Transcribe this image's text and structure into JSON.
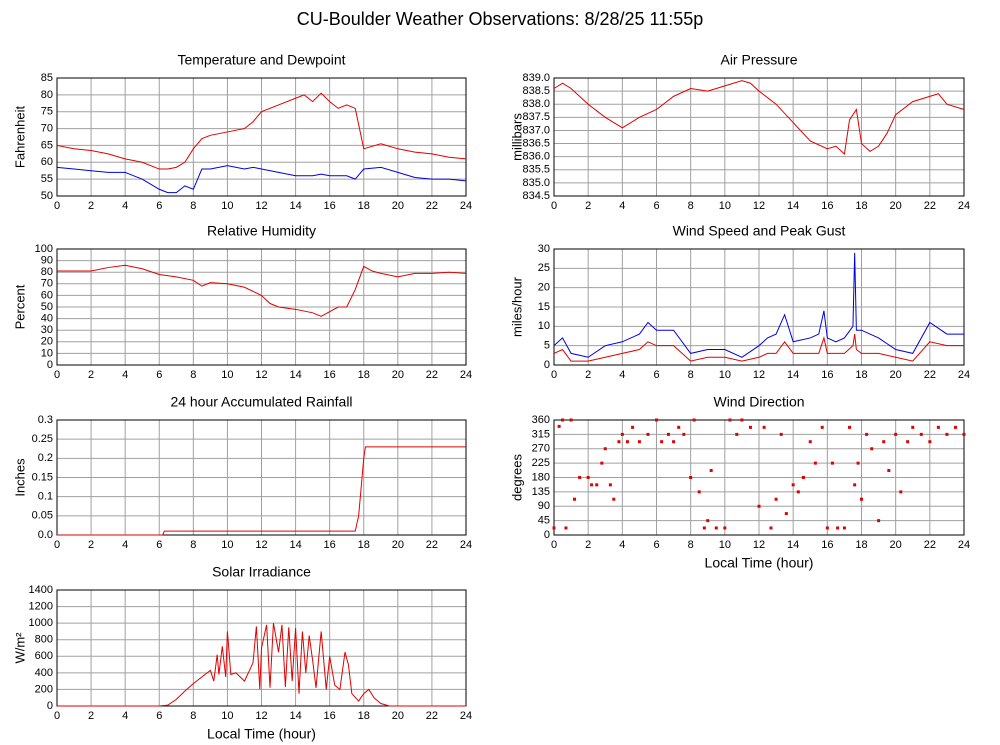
{
  "title": "CU-Boulder Weather Observations: 8/28/25 11:55p",
  "chart_data": [
    {
      "type": "line",
      "title": "Temperature and Dewpoint",
      "ylabel": "Fahrenheit",
      "grid": true,
      "x": [
        0,
        1,
        2,
        3,
        4,
        5,
        6,
        6.5,
        7,
        7.5,
        8,
        8.5,
        9,
        10,
        11,
        11.5,
        12,
        13,
        14,
        14.5,
        15,
        15.5,
        16,
        16.5,
        17,
        17.5,
        18,
        19,
        20,
        21,
        22,
        23,
        24
      ],
      "series": [
        {
          "color": "#e00000",
          "values": [
            65,
            64,
            63.5,
            62.5,
            61,
            60,
            58,
            58,
            58.5,
            60,
            64,
            67,
            68,
            69,
            70,
            72,
            75,
            77,
            79,
            80,
            78,
            80.5,
            78,
            76,
            77,
            76,
            64,
            65.5,
            64,
            63,
            62.5,
            61.5,
            61
          ]
        },
        {
          "color": "#0000e0",
          "values": [
            58.5,
            58,
            57.5,
            57,
            57,
            55,
            52,
            51,
            51,
            53,
            52,
            58,
            58,
            59,
            58,
            58.5,
            58,
            57,
            56,
            56,
            56,
            56.5,
            56,
            56,
            56,
            55,
            58,
            58.5,
            57,
            55.5,
            55,
            55,
            54.5
          ]
        }
      ],
      "xlim": [
        0,
        24
      ],
      "xticks": [
        0,
        2,
        4,
        6,
        8,
        10,
        12,
        14,
        16,
        18,
        20,
        22,
        24
      ],
      "ylim": [
        50,
        85
      ],
      "yticks": [
        50,
        55,
        60,
        65,
        70,
        75,
        80,
        85
      ]
    },
    {
      "type": "line",
      "title": "Air Pressure",
      "ylabel": "millibars",
      "grid": true,
      "x": [
        0,
        0.5,
        1,
        2,
        3,
        4,
        5,
        6,
        7,
        8,
        9,
        10,
        11,
        11.5,
        12,
        13,
        14,
        15,
        16,
        16.5,
        17,
        17.3,
        17.7,
        18,
        18.5,
        19,
        19.5,
        20,
        21,
        22,
        22.5,
        23,
        24
      ],
      "series": [
        {
          "color": "#e00000",
          "values": [
            838.6,
            838.8,
            838.6,
            838.0,
            837.5,
            837.1,
            837.5,
            837.8,
            838.3,
            838.6,
            838.5,
            838.7,
            838.9,
            838.8,
            838.5,
            838.0,
            837.3,
            836.6,
            836.3,
            836.4,
            836.1,
            837.4,
            837.8,
            836.5,
            836.2,
            836.4,
            836.9,
            837.6,
            838.1,
            838.3,
            838.4,
            838.0,
            837.8
          ]
        }
      ],
      "xlim": [
        0,
        24
      ],
      "xticks": [
        0,
        2,
        4,
        6,
        8,
        10,
        12,
        14,
        16,
        18,
        20,
        22,
        24
      ],
      "ylim": [
        834.5,
        839
      ],
      "yticks": [
        834.5,
        {
          "value": 835,
          "label": "835.0"
        },
        835.5,
        {
          "value": 836,
          "label": "836.0"
        },
        836.5,
        {
          "value": 837,
          "label": "837.0"
        },
        837.5,
        {
          "value": 838,
          "label": "838.0"
        },
        838.5,
        {
          "value": 839,
          "label": "839.0"
        }
      ]
    },
    {
      "type": "line",
      "title": "Relative Humidity",
      "ylabel": "Percent",
      "grid": true,
      "x": [
        0,
        1,
        2,
        3,
        4,
        5,
        6,
        7,
        8,
        8.5,
        9,
        10,
        11,
        12,
        12.5,
        13,
        14,
        15,
        15.5,
        16,
        16.5,
        17,
        17.5,
        18,
        18.5,
        19,
        20,
        21,
        22,
        23,
        24
      ],
      "series": [
        {
          "color": "#e00000",
          "values": [
            81,
            81,
            81,
            84,
            86,
            83,
            78,
            76,
            73,
            68,
            71,
            70,
            67,
            60,
            53,
            50,
            48,
            45,
            42,
            46,
            50,
            50,
            65,
            85,
            81,
            79,
            76,
            79,
            79,
            80,
            79
          ]
        }
      ],
      "xlim": [
        0,
        24
      ],
      "xticks": [
        0,
        2,
        4,
        6,
        8,
        10,
        12,
        14,
        16,
        18,
        20,
        22,
        24
      ],
      "ylim": [
        0,
        100
      ],
      "yticks": [
        0,
        10,
        20,
        30,
        40,
        50,
        60,
        70,
        80,
        90,
        100
      ]
    },
    {
      "type": "line",
      "title": "Wind Speed and Peak Gust",
      "ylabel": "miles/hour",
      "grid": true,
      "x": [
        0,
        0.5,
        1,
        2,
        3,
        4,
        5,
        5.5,
        6,
        7,
        8,
        9,
        10,
        11,
        12,
        12.5,
        13,
        13.5,
        14,
        15,
        15.5,
        15.8,
        16,
        16.5,
        17,
        17.5,
        17.6,
        17.7,
        18,
        19,
        20,
        21,
        22,
        23,
        24
      ],
      "series": [
        {
          "color": "#0000e0",
          "values": [
            5,
            7,
            3,
            2,
            5,
            6,
            8,
            11,
            9,
            9,
            3,
            4,
            4,
            2,
            5,
            7,
            8,
            13,
            6,
            7,
            8,
            14,
            7,
            6,
            7,
            10,
            29,
            9,
            9,
            7,
            4,
            3,
            11,
            8,
            8
          ]
        },
        {
          "color": "#e00000",
          "values": [
            3,
            4,
            1,
            1,
            2,
            3,
            4,
            6,
            5,
            5,
            1,
            2,
            2,
            1,
            2,
            3,
            3,
            6,
            3,
            3,
            3,
            7,
            3,
            3,
            3,
            5,
            8,
            4,
            3,
            3,
            2,
            1,
            6,
            5,
            5
          ]
        }
      ],
      "xlim": [
        0,
        24
      ],
      "xticks": [
        0,
        2,
        4,
        6,
        8,
        10,
        12,
        14,
        16,
        18,
        20,
        22,
        24
      ],
      "ylim": [
        0,
        30
      ],
      "yticks": [
        0,
        5,
        10,
        15,
        20,
        25,
        30
      ]
    },
    {
      "type": "line",
      "title": "24 hour Accumulated Rainfall",
      "ylabel": "Inches",
      "grid": true,
      "x": [
        0,
        6.2,
        6.3,
        17.5,
        17.7,
        17.9,
        18.0,
        18.1,
        24
      ],
      "series": [
        {
          "color": "#e00000",
          "values": [
            0,
            0,
            0.01,
            0.01,
            0.05,
            0.15,
            0.2,
            0.23,
            0.23
          ]
        }
      ],
      "xlim": [
        0,
        24
      ],
      "xticks": [
        0,
        2,
        4,
        6,
        8,
        10,
        12,
        14,
        16,
        18,
        20,
        22,
        24
      ],
      "ylim": [
        0,
        0.3
      ],
      "yticks": [
        {
          "value": 0,
          "label": "0.0"
        },
        0.05,
        0.1,
        0.15,
        0.2,
        0.25,
        0.3
      ]
    },
    {
      "type": "scatter",
      "title": "Wind Direction",
      "ylabel": "degrees",
      "xlabel": "Local Time (hour)",
      "grid": true,
      "x": [
        0,
        0.3,
        0.5,
        0.7,
        1,
        1.2,
        1.5,
        2,
        2.2,
        2.5,
        2.8,
        3,
        3.3,
        3.5,
        3.8,
        4,
        4.3,
        4.6,
        5,
        5.5,
        6,
        6.3,
        6.7,
        7,
        7.3,
        7.6,
        8,
        8.2,
        8.5,
        8.8,
        9,
        9.2,
        9.5,
        10,
        10.3,
        10.7,
        11,
        11.5,
        12,
        12.3,
        12.7,
        13,
        13.3,
        13.6,
        14,
        14.3,
        14.6,
        15,
        15.3,
        15.7,
        16,
        16.3,
        16.6,
        17,
        17.3,
        17.6,
        17.8,
        18,
        18.3,
        18.6,
        19,
        19.3,
        19.6,
        20,
        20.3,
        20.7,
        21,
        21.5,
        22,
        22.5,
        23,
        23.5,
        24
      ],
      "series": [
        {
          "color": "#e00000",
          "values": [
            22,
            340,
            360,
            22,
            360,
            112,
            180,
            180,
            157,
            157,
            225,
            270,
            157,
            112,
            292,
            315,
            292,
            337,
            292,
            315,
            360,
            292,
            315,
            292,
            337,
            315,
            180,
            360,
            135,
            22,
            45,
            202,
            22,
            22,
            360,
            315,
            360,
            337,
            90,
            337,
            22,
            112,
            315,
            67,
            157,
            135,
            180,
            292,
            225,
            337,
            22,
            225,
            22,
            22,
            337,
            157,
            225,
            112,
            315,
            270,
            45,
            292,
            202,
            315,
            135,
            292,
            337,
            315,
            292,
            337,
            315,
            337,
            315
          ]
        }
      ],
      "xlim": [
        0,
        24
      ],
      "xticks": [
        0,
        2,
        4,
        6,
        8,
        10,
        12,
        14,
        16,
        18,
        20,
        22,
        24
      ],
      "ylim": [
        0,
        360
      ],
      "yticks": [
        0,
        45,
        90,
        135,
        180,
        225,
        270,
        315,
        360
      ]
    },
    {
      "type": "line",
      "title": "Solar Irradiance",
      "ylabel": "W/m²",
      "xlabel": "Local Time (hour)",
      "grid": true,
      "x": [
        0,
        6,
        6.5,
        7,
        7.5,
        8,
        8.5,
        9,
        9.2,
        9.4,
        9.5,
        9.7,
        9.9,
        10,
        10.2,
        10.5,
        11,
        11.5,
        11.7,
        11.9,
        12,
        12.3,
        12.5,
        12.7,
        13,
        13.2,
        13.4,
        13.6,
        13.8,
        14,
        14.2,
        14.4,
        14.6,
        14.8,
        15,
        15.2,
        15.5,
        15.8,
        16,
        16.3,
        16.6,
        16.9,
        17.1,
        17.3,
        17.7,
        18,
        18.3,
        18.6,
        19,
        19.5,
        20,
        24
      ],
      "series": [
        {
          "color": "#e00000",
          "values": [
            0,
            0,
            10,
            80,
            180,
            270,
            350,
            430,
            300,
            620,
            380,
            720,
            350,
            900,
            380,
            400,
            300,
            520,
            960,
            200,
            700,
            980,
            220,
            1000,
            650,
            980,
            230,
            950,
            300,
            940,
            150,
            900,
            400,
            850,
            550,
            220,
            900,
            200,
            600,
            250,
            200,
            650,
            500,
            150,
            60,
            150,
            200,
            100,
            30,
            0,
            0,
            0
          ]
        }
      ],
      "xlim": [
        0,
        24
      ],
      "xticks": [
        0,
        2,
        4,
        6,
        8,
        10,
        12,
        14,
        16,
        18,
        20,
        22,
        24
      ],
      "ylim": [
        0,
        1400
      ],
      "yticks": [
        0,
        200,
        400,
        600,
        800,
        1000,
        1200,
        1400
      ]
    }
  ]
}
